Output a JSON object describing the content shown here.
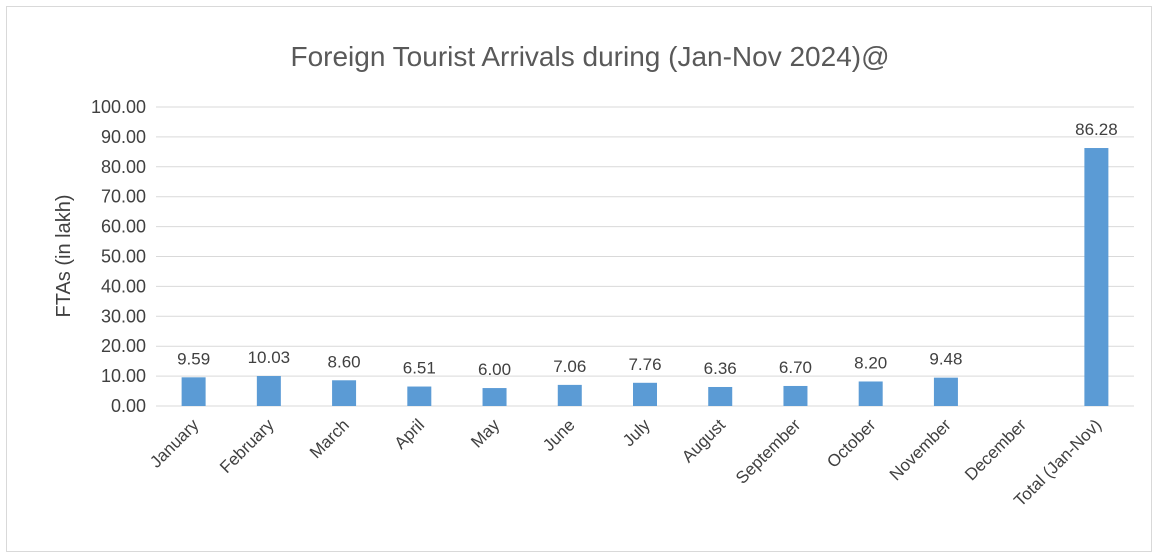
{
  "chart_data": {
    "type": "bar",
    "title": "Foreign Tourist Arrivals during (Jan-Nov 2024)@",
    "xlabel": "",
    "ylabel": "FTAs (in lakh)",
    "ylim": [
      0,
      100
    ],
    "yticks": [
      "0.00",
      "10.00",
      "20.00",
      "30.00",
      "40.00",
      "50.00",
      "60.00",
      "70.00",
      "80.00",
      "90.00",
      "100.00"
    ],
    "grid": true,
    "legend": "none",
    "bar_color": "#5b9bd5",
    "categories": [
      "January",
      "February",
      "March",
      "April",
      "May",
      "June",
      "July",
      "August",
      "September",
      "October",
      "November",
      "December",
      "Total (Jan-Nov)"
    ],
    "values": [
      9.59,
      10.03,
      8.6,
      6.51,
      6.0,
      7.06,
      7.76,
      6.36,
      6.7,
      8.2,
      9.48,
      null,
      86.28
    ],
    "data_labels": [
      "9.59",
      "10.03",
      "8.60",
      "6.51",
      "6.00",
      "7.06",
      "7.76",
      "6.36",
      "6.70",
      "8.20",
      "9.48",
      "",
      "86.28"
    ]
  }
}
